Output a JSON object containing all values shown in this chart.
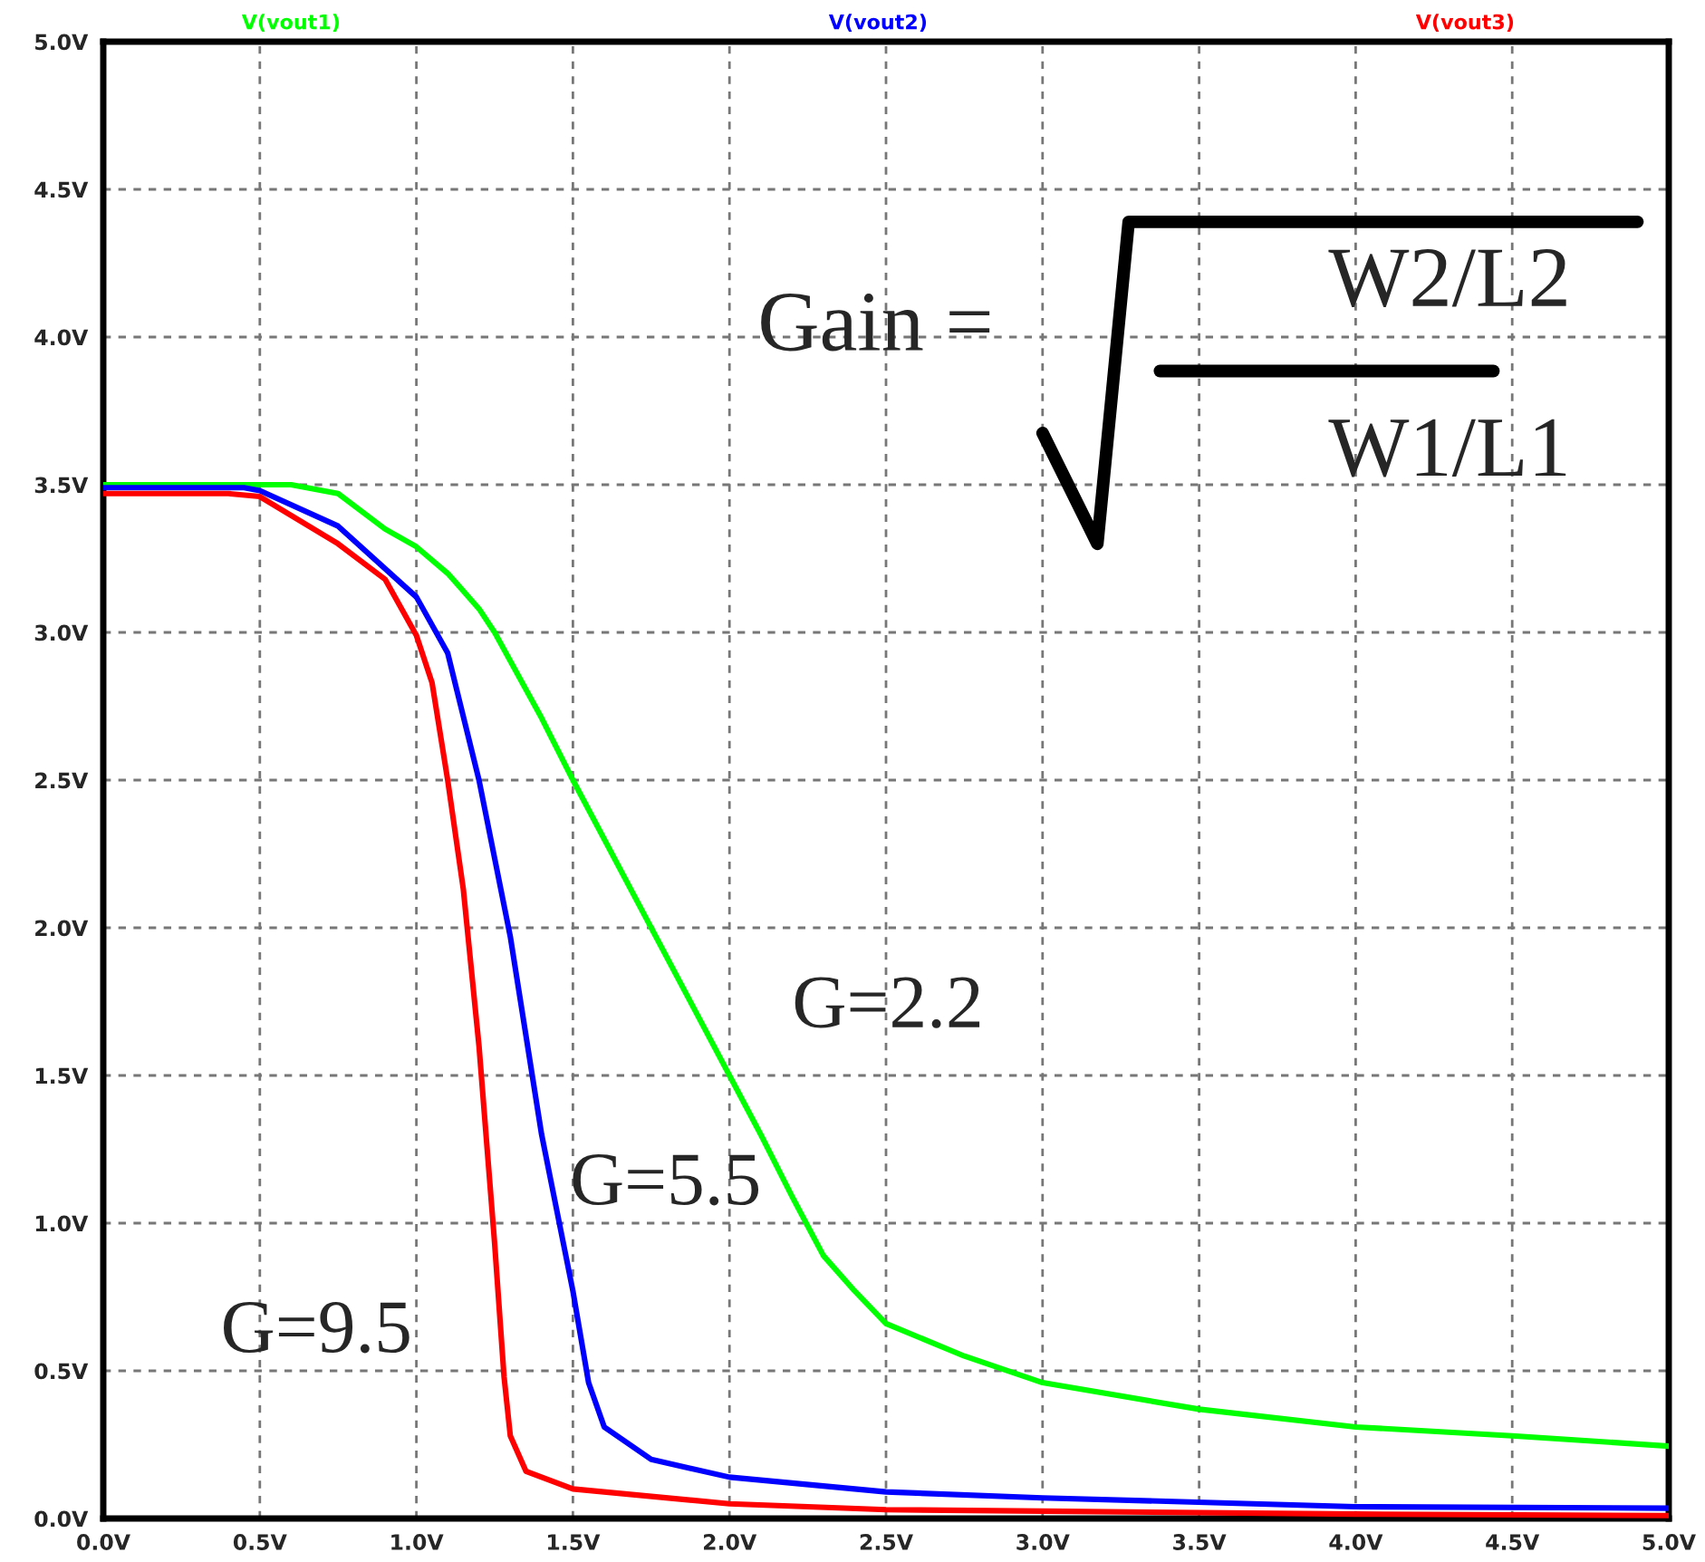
{
  "chart_data": {
    "type": "line",
    "xlim": [
      0,
      5
    ],
    "ylim": [
      0,
      5
    ],
    "xticks": [
      {
        "value": 0,
        "label": "0.0V"
      },
      {
        "value": 0.5,
        "label": "0.5V"
      },
      {
        "value": 1,
        "label": "1.0V"
      },
      {
        "value": 1.5,
        "label": "1.5V"
      },
      {
        "value": 2,
        "label": "2.0V"
      },
      {
        "value": 2.5,
        "label": "2.5V"
      },
      {
        "value": 3,
        "label": "3.0V"
      },
      {
        "value": 3.5,
        "label": "3.5V"
      },
      {
        "value": 4,
        "label": "4.0V"
      },
      {
        "value": 4.5,
        "label": "4.5V"
      },
      {
        "value": 5,
        "label": "5.0V"
      }
    ],
    "yticks": [
      {
        "value": 0,
        "label": "0.0V"
      },
      {
        "value": 0.5,
        "label": "0.5V"
      },
      {
        "value": 1,
        "label": "1.0V"
      },
      {
        "value": 1.5,
        "label": "1.5V"
      },
      {
        "value": 2,
        "label": "2.0V"
      },
      {
        "value": 2.5,
        "label": "2.5V"
      },
      {
        "value": 3,
        "label": "3.0V"
      },
      {
        "value": 3.5,
        "label": "3.5V"
      },
      {
        "value": 4,
        "label": "4.0V"
      },
      {
        "value": 4.5,
        "label": "4.5V"
      },
      {
        "value": 5,
        "label": "5.0V"
      }
    ],
    "grid": true,
    "legend": "top",
    "marker": "none",
    "line_style": "solid",
    "series": [
      {
        "name": "V(vout1)",
        "color": "#00ff00",
        "x": [
          0,
          0.6,
          0.75,
          0.9,
          1.0,
          1.1,
          1.2,
          1.25,
          1.4,
          1.5,
          1.75,
          2.0,
          2.1,
          2.2,
          2.25,
          2.3,
          2.4,
          2.5,
          2.75,
          3.0,
          3.5,
          4.0,
          4.5,
          5.0
        ],
        "values": [
          3.5,
          3.5,
          3.47,
          3.35,
          3.29,
          3.2,
          3.08,
          3.0,
          2.71,
          2.5,
          2.0,
          1.5,
          1.3,
          1.09,
          0.99,
          0.89,
          0.77,
          0.66,
          0.55,
          0.46,
          0.37,
          0.31,
          0.28,
          0.245
        ]
      },
      {
        "name": "V(vout2)",
        "color": "#0000ff",
        "x": [
          0,
          0.45,
          0.5,
          0.75,
          1.0,
          1.1,
          1.2,
          1.3,
          1.4,
          1.5,
          1.55,
          1.6,
          1.75,
          2.0,
          2.5,
          3.0,
          4.0,
          5.0
        ],
        "values": [
          3.49,
          3.49,
          3.48,
          3.36,
          3.12,
          2.93,
          2.5,
          1.97,
          1.3,
          0.77,
          0.46,
          0.31,
          0.2,
          0.14,
          0.09,
          0.07,
          0.04,
          0.035
        ]
      },
      {
        "name": "V(vout3)",
        "color": "#ff0000",
        "x": [
          0,
          0.4,
          0.5,
          0.75,
          0.9,
          1.0,
          1.05,
          1.1,
          1.15,
          1.2,
          1.25,
          1.28,
          1.3,
          1.35,
          1.5,
          2.0,
          2.5,
          3.0,
          4.0,
          5.0
        ],
        "values": [
          3.47,
          3.47,
          3.46,
          3.3,
          3.18,
          2.99,
          2.83,
          2.5,
          2.13,
          1.6,
          0.93,
          0.48,
          0.28,
          0.16,
          0.1,
          0.05,
          0.03,
          0.025,
          0.015,
          0.01
        ]
      }
    ],
    "annotations": [
      "G=2.2",
      "G=5.5",
      "G=9.5",
      "Gain =",
      "W2/L2",
      "W1/L1"
    ]
  }
}
